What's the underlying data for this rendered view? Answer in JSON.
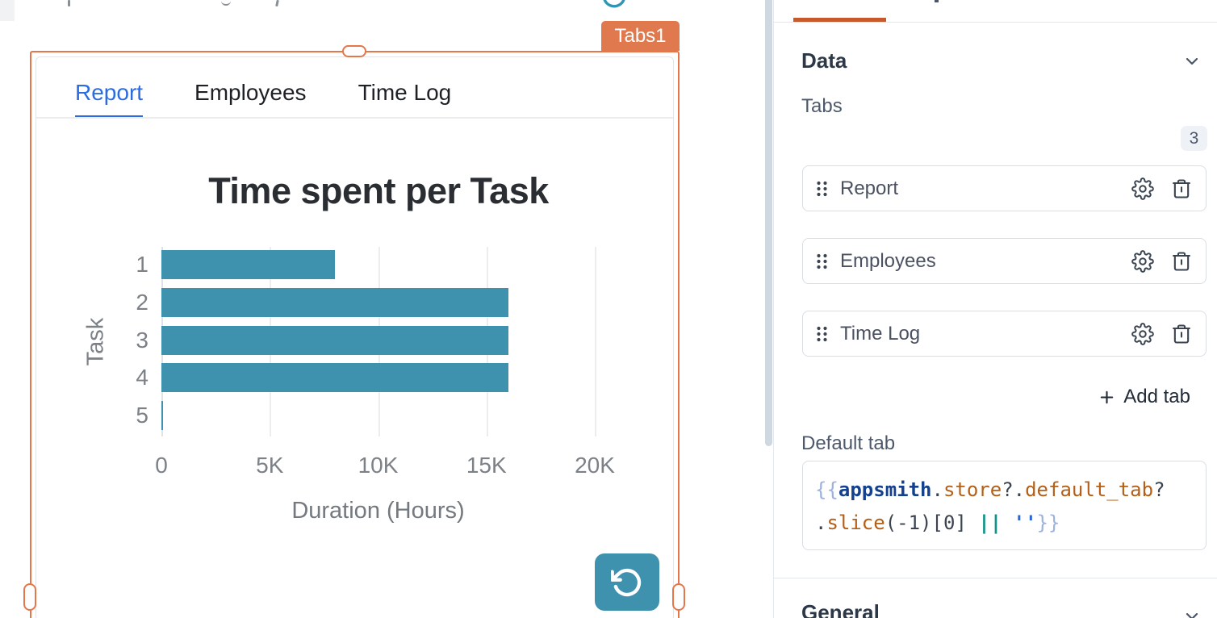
{
  "colors": {
    "selection_orange": "#e4764a",
    "badge_orange": "#e0794e",
    "pane_tab_indicator_orange": "#c75a2d",
    "active_tab_blue": "#2d6be0",
    "bar_teal": "#3e92ad",
    "code_keyword": "#14408e",
    "code_property": "#b35f17",
    "code_operator": "#109488",
    "code_string": "#2b66d9",
    "code_brace": "#9cb1de"
  },
  "canvas": {
    "widget_name_badge": "Tabs1",
    "widget_tabs": [
      {
        "label": "Report",
        "active": true
      },
      {
        "label": "Employees",
        "active": false
      },
      {
        "label": "Time Log",
        "active": false
      }
    ],
    "refresh_icon": "rotate-ccw-icon"
  },
  "chart_data": {
    "type": "bar",
    "orientation": "horizontal",
    "title": "Time spent per Task",
    "categories": [
      "1",
      "2",
      "3",
      "4",
      "5"
    ],
    "values": [
      8000,
      16000,
      16000,
      16000,
      80
    ],
    "xlabel": "Duration (Hours)",
    "ylabel": "Task",
    "xlim": [
      0,
      20000
    ],
    "xticks": {
      "values": [
        0,
        5000,
        10000,
        15000,
        20000
      ],
      "labels": [
        "0",
        "5K",
        "10K",
        "15K",
        "20K"
      ]
    },
    "grid": "vertical",
    "legend": false,
    "bar_color": "#3e92ad"
  },
  "property_pane": {
    "data_section": {
      "title": "Data",
      "tabs_field_label": "Tabs",
      "tabs_count": "3",
      "tab_items": [
        {
          "label": "Report"
        },
        {
          "label": "Employees"
        },
        {
          "label": "Time Log"
        }
      ],
      "add_tab_label": "Add tab",
      "default_tab_label": "Default tab",
      "default_tab_expression": "{{appsmith.store?.default_tab?.slice(-1)[0] || ''}}",
      "code_lines": [
        [
          {
            "t": "{{",
            "c": "brace"
          },
          {
            "t": "appsmith",
            "c": "keyword"
          },
          {
            "t": ".",
            "c": "plain"
          },
          {
            "t": "store",
            "c": "prop"
          },
          {
            "t": "?.",
            "c": "plain"
          },
          {
            "t": "default_tab",
            "c": "prop"
          },
          {
            "t": "?",
            "c": "plain"
          }
        ],
        [
          {
            "t": ".",
            "c": "plain"
          },
          {
            "t": "slice",
            "c": "prop"
          },
          {
            "t": "(-1)[0] ",
            "c": "plain"
          },
          {
            "t": "||",
            "c": "op"
          },
          {
            "t": " ",
            "c": "plain"
          },
          {
            "t": "''",
            "c": "string"
          },
          {
            "t": "}}",
            "c": "brace"
          }
        ]
      ]
    },
    "general_section": {
      "title": "General"
    }
  }
}
